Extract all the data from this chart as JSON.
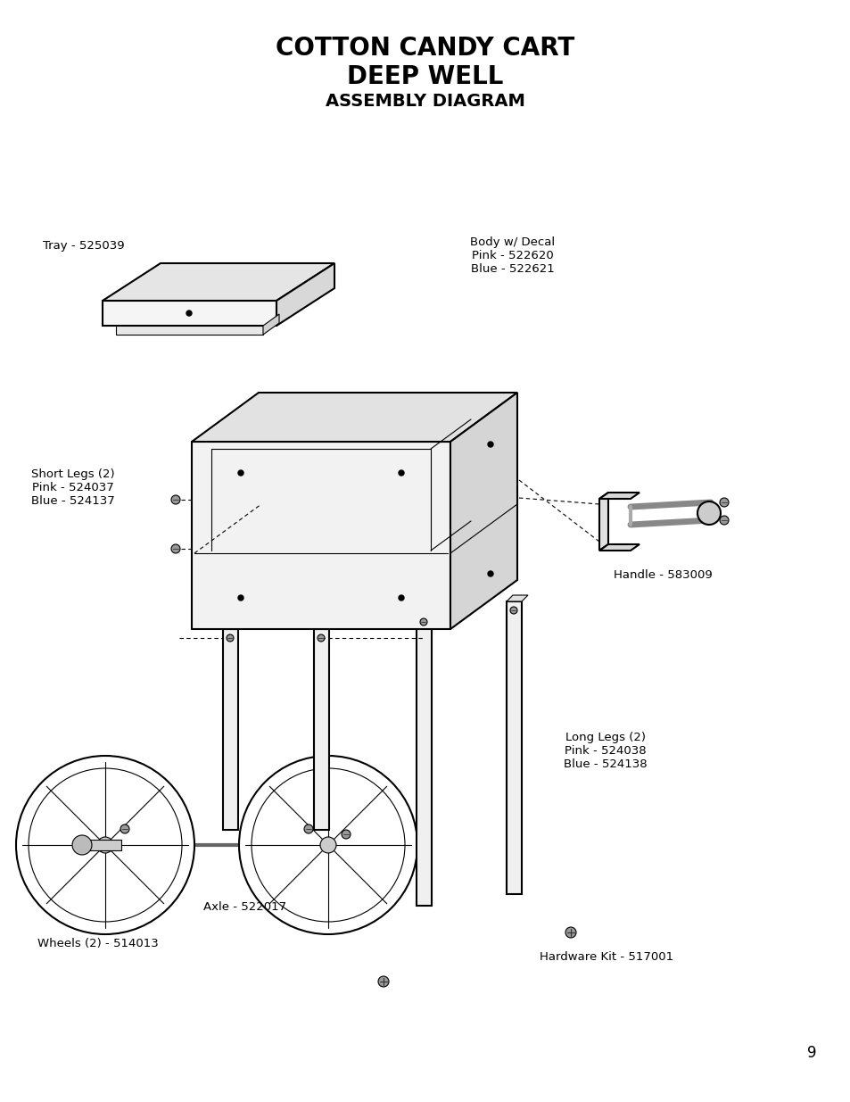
{
  "title_line1": "COTTON CANDY CART",
  "title_line2": "DEEP WELL",
  "title_line3": "ASSEMBLY DIAGRAM",
  "bg_color": "#ffffff",
  "text_color": "#000000",
  "line_color": "#000000",
  "labels": {
    "tray": "Tray - 525039",
    "body": "Body w/ Decal\nPink - 522620\nBlue - 522621",
    "handle": "Handle - 583009",
    "short_legs": "Short Legs (2)\nPink - 524037\nBlue - 524137",
    "long_legs": "Long Legs (2)\nPink - 524038\nBlue - 524138",
    "axle": "Axle - 522017",
    "wheels": "Wheels (2) - 514013",
    "hardware": "Hardware Kit - 517001",
    "page": "9"
  }
}
